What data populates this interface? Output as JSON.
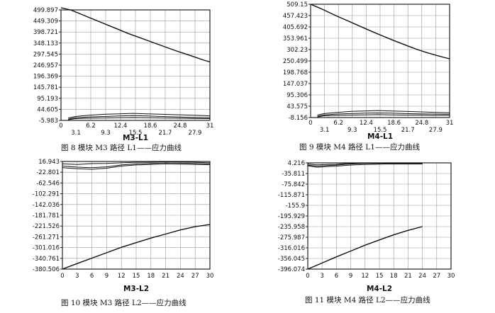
{
  "chart_data": [
    {
      "type": "line",
      "name_label": "M3-L1",
      "caption": "图 8   模块 M3 路径 L1——应力曲线",
      "y_ticks": [
        "499.897",
        "449.309",
        "398.721",
        "348.133",
        "297.545",
        "246.957",
        "196.369",
        "145.781",
        "95.193",
        "44.605",
        "-5.983"
      ],
      "x_ticks_upper": [
        "0",
        "6.2",
        "12.4",
        "18.6",
        "24.8",
        "31"
      ],
      "x_ticks_lower": [
        "3.1",
        "9.3",
        "15.5",
        "21.7",
        "27.9"
      ],
      "xlim": [
        0,
        31
      ],
      "ylim": [
        -5.983,
        499.897
      ],
      "series": [
        {
          "values": [
            [
              0,
              510
            ],
            [
              2,
              499.9
            ],
            [
              4,
              482
            ],
            [
              6,
              464
            ],
            [
              8,
              446
            ],
            [
              10,
              428
            ],
            [
              12,
              410
            ],
            [
              14,
              392
            ],
            [
              16,
              376
            ],
            [
              18,
              360
            ],
            [
              20,
              344
            ],
            [
              22,
              328
            ],
            [
              24,
              312
            ],
            [
              26,
              298
            ],
            [
              28,
              283
            ],
            [
              30,
              268
            ],
            [
              31,
              262
            ]
          ]
        },
        {
          "values": [
            [
              1.5,
              5
            ],
            [
              3,
              12
            ],
            [
              6,
              18
            ],
            [
              9,
              22
            ],
            [
              12,
              24
            ],
            [
              15,
              26
            ],
            [
              18,
              24
            ],
            [
              21,
              22
            ],
            [
              24,
              20
            ],
            [
              27,
              18
            ],
            [
              30,
              16
            ],
            [
              31,
              14
            ]
          ]
        },
        {
          "values": [
            [
              1.5,
              0
            ],
            [
              3,
              6
            ],
            [
              6,
              10
            ],
            [
              9,
              12
            ],
            [
              12,
              14
            ],
            [
              15,
              16
            ],
            [
              18,
              14
            ],
            [
              21,
              12
            ],
            [
              24,
              10
            ],
            [
              27,
              8
            ],
            [
              30,
              7
            ],
            [
              31,
              6
            ]
          ]
        },
        {
          "values": [
            [
              1.5,
              -3
            ],
            [
              3,
              2
            ],
            [
              6,
              4
            ],
            [
              9,
              5
            ],
            [
              12,
              6
            ],
            [
              15,
              7
            ],
            [
              18,
              6
            ],
            [
              21,
              5
            ],
            [
              24,
              4
            ],
            [
              27,
              3
            ],
            [
              30,
              2
            ],
            [
              31,
              2
            ]
          ]
        }
      ]
    },
    {
      "type": "line",
      "name_label": "M4-L1",
      "caption": "图 9   模块 M4 路径 L1——应力曲线",
      "y_ticks": [
        "509.15",
        "457.423",
        "405.692",
        "353.961",
        "302.23",
        "250.499",
        "198.768",
        "147.037",
        "95.306",
        "43.575",
        "-8.156"
      ],
      "x_ticks_upper": [
        "0",
        "6.2",
        "12.4",
        "18.6",
        "24.8",
        "31"
      ],
      "x_ticks_lower": [
        "3.1",
        "9.3",
        "15.5",
        "21.7",
        "27.9"
      ],
      "xlim": [
        0,
        31
      ],
      "ylim": [
        -8.156,
        509.15
      ],
      "series": [
        {
          "values": [
            [
              0,
              509.15
            ],
            [
              2,
              492
            ],
            [
              4,
              473
            ],
            [
              6,
              454
            ],
            [
              8,
              436
            ],
            [
              10,
              418
            ],
            [
              12,
              400
            ],
            [
              14,
              382
            ],
            [
              16,
              365
            ],
            [
              18,
              348
            ],
            [
              20,
              332
            ],
            [
              22,
              316
            ],
            [
              24,
              301
            ],
            [
              26,
              288
            ],
            [
              28,
              276
            ],
            [
              30,
              265
            ],
            [
              31,
              260
            ]
          ]
        },
        {
          "values": [
            [
              1.5,
              3
            ],
            [
              3,
              10
            ],
            [
              6,
              15
            ],
            [
              9,
              20
            ],
            [
              12,
              22
            ],
            [
              15,
              24
            ],
            [
              18,
              22
            ],
            [
              21,
              20
            ],
            [
              24,
              18
            ],
            [
              27,
              16
            ],
            [
              30,
              14
            ],
            [
              31,
              14
            ]
          ]
        },
        {
          "values": [
            [
              1.5,
              -2
            ],
            [
              3,
              4
            ],
            [
              6,
              8
            ],
            [
              9,
              10
            ],
            [
              12,
              12
            ],
            [
              15,
              13
            ],
            [
              18,
              12
            ],
            [
              21,
              10
            ],
            [
              24,
              9
            ],
            [
              27,
              8
            ],
            [
              30,
              7
            ],
            [
              31,
              7
            ]
          ]
        },
        {
          "values": [
            [
              1.5,
              -6
            ],
            [
              3,
              0
            ],
            [
              6,
              2
            ],
            [
              9,
              3
            ],
            [
              12,
              4
            ],
            [
              15,
              5
            ],
            [
              18,
              4
            ],
            [
              21,
              3
            ],
            [
              24,
              3
            ],
            [
              27,
              2
            ],
            [
              30,
              2
            ],
            [
              31,
              2
            ]
          ]
        }
      ]
    },
    {
      "type": "line",
      "name_label": "M3-L2",
      "caption": "图 10   模块 M3 路径 L2——应力曲线",
      "y_ticks": [
        "16.943",
        "-22.801",
        "-62.546",
        "-102.291",
        "-142.036",
        "-181.781",
        "-221.526",
        "-261.271",
        "-301.016",
        "-340.761",
        "-380.506"
      ],
      "x_ticks": [
        "0",
        "3",
        "6",
        "9",
        "12",
        "15",
        "18",
        "21",
        "24",
        "27",
        "30"
      ],
      "xlim": [
        0,
        30
      ],
      "ylim": [
        -380.506,
        16.943
      ],
      "series": [
        {
          "values": [
            [
              0,
              -380.5
            ],
            [
              3,
              -360
            ],
            [
              6,
              -340
            ],
            [
              9,
              -320
            ],
            [
              12,
              -300
            ],
            [
              15,
              -283
            ],
            [
              18,
              -266
            ],
            [
              21,
              -251
            ],
            [
              24,
              -236
            ],
            [
              27,
              -224
            ],
            [
              30,
              -216
            ]
          ]
        },
        {
          "values": [
            [
              0,
              8
            ],
            [
              3,
              6
            ],
            [
              6,
              9
            ],
            [
              9,
              10
            ],
            [
              12,
              12
            ],
            [
              15,
              14
            ],
            [
              18,
              14
            ],
            [
              21,
              16
            ],
            [
              24,
              15
            ],
            [
              27,
              14
            ],
            [
              30,
              12
            ]
          ]
        },
        {
          "values": [
            [
              0,
              0
            ],
            [
              3,
              -4
            ],
            [
              6,
              -6
            ],
            [
              9,
              -3
            ],
            [
              12,
              4
            ],
            [
              15,
              8
            ],
            [
              18,
              10
            ],
            [
              21,
              12
            ],
            [
              24,
              11
            ],
            [
              27,
              10
            ],
            [
              30,
              8
            ]
          ]
        },
        {
          "values": [
            [
              0,
              -6
            ],
            [
              3,
              -10
            ],
            [
              6,
              -12
            ],
            [
              9,
              -8
            ],
            [
              12,
              0
            ],
            [
              15,
              4
            ],
            [
              18,
              6
            ],
            [
              21,
              8
            ],
            [
              24,
              7
            ],
            [
              27,
              6
            ],
            [
              30,
              5
            ]
          ]
        }
      ]
    },
    {
      "type": "line",
      "name_label": "M4-L2",
      "caption": "图 11   模块 M4 路径 L2——应力曲线",
      "y_ticks": [
        "4.216",
        "-35.811",
        "-75.842",
        "-115.871",
        "-155.9",
        "-195.929",
        "-235.958",
        "-275.987",
        "-316.016",
        "-356.045",
        "-396.074"
      ],
      "x_ticks": [
        "0",
        "3",
        "6",
        "9",
        "12",
        "15",
        "18",
        "21",
        "24",
        "27",
        "30"
      ],
      "xlim": [
        0,
        30
      ],
      "ylim": [
        -396.074,
        4.216
      ],
      "series": [
        {
          "values": [
            [
              0,
              -396.07
            ],
            [
              3,
              -373
            ],
            [
              6,
              -350
            ],
            [
              9,
              -328
            ],
            [
              12,
              -306
            ],
            [
              15,
              -286
            ],
            [
              18,
              -267
            ],
            [
              21,
              -250
            ],
            [
              24,
              -236
            ]
          ]
        },
        {
          "values": [
            [
              0,
              0
            ],
            [
              2,
              -3
            ],
            [
              4,
              -2
            ],
            [
              6,
              -1
            ],
            [
              8,
              2
            ],
            [
              10,
              3
            ],
            [
              12,
              4
            ],
            [
              14,
              4
            ],
            [
              16,
              4
            ],
            [
              18,
              4
            ],
            [
              20,
              4
            ],
            [
              22,
              4
            ],
            [
              24,
              4
            ]
          ]
        },
        {
          "values": [
            [
              0,
              -4
            ],
            [
              2,
              -8
            ],
            [
              4,
              -6
            ],
            [
              6,
              -4
            ],
            [
              8,
              -1
            ],
            [
              10,
              1
            ],
            [
              12,
              2
            ],
            [
              14,
              2
            ],
            [
              16,
              2
            ],
            [
              18,
              2
            ],
            [
              20,
              2
            ],
            [
              22,
              2
            ],
            [
              24,
              2
            ]
          ]
        },
        {
          "values": [
            [
              0,
              -7
            ],
            [
              2,
              -12
            ],
            [
              4,
              -10
            ],
            [
              6,
              -8
            ],
            [
              8,
              -5
            ],
            [
              10,
              -3
            ],
            [
              12,
              -2
            ],
            [
              14,
              -1
            ],
            [
              16,
              0
            ],
            [
              18,
              0
            ],
            [
              20,
              0
            ],
            [
              22,
              0
            ],
            [
              24,
              0
            ]
          ]
        }
      ]
    }
  ]
}
